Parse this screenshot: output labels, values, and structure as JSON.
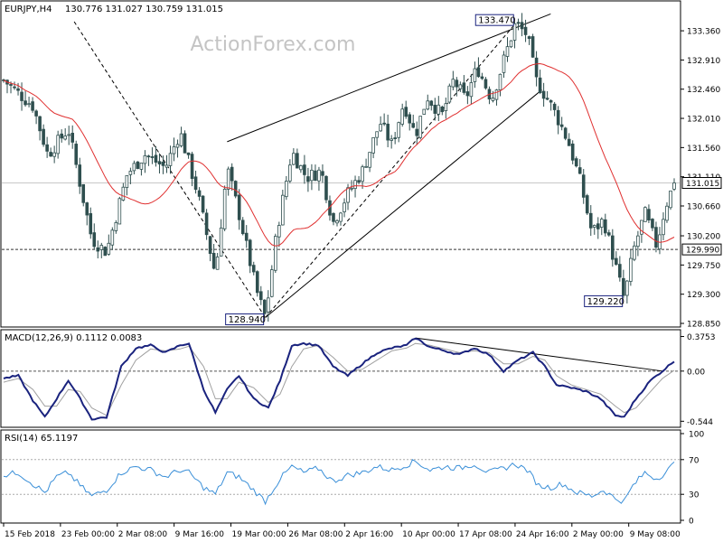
{
  "header": {
    "symbol": "EURJPY,H4",
    "ohlc": "130.776 131.027 130.759 131.015"
  },
  "watermark": "ActionForex.com",
  "colors": {
    "candle": "#2f4f4f",
    "ma": "#e03030",
    "macd_main": "#1a237e",
    "macd_signal": "#a0a0a0",
    "rsi": "#3a8fd8",
    "trendline": "#000000",
    "price_tag_bg": "#ffffff",
    "text": "#000000",
    "grid": "#c8c8c8"
  },
  "chart_data": [
    {
      "type": "candlestick",
      "panel": "main",
      "ylim": [
        128.85,
        133.57
      ],
      "y_ticks": [
        "133.360",
        "132.910",
        "132.460",
        "132.010",
        "131.560",
        "131.110",
        "130.660",
        "130.200",
        "129.750",
        "129.300",
        "128.850"
      ],
      "y_tick_values": [
        133.36,
        132.91,
        132.46,
        132.01,
        131.56,
        131.11,
        130.66,
        130.2,
        129.75,
        129.3,
        128.85
      ],
      "x_labels": [
        "15 Feb 2018",
        "23 Feb 00:00",
        "2 Mar 08:00",
        "9 Mar 16:00",
        "19 Mar 00:00",
        "26 Mar 08:00",
        "2 Apr 16:00",
        "10 Apr 00:00",
        "17 Apr 08:00",
        "24 Apr 16:00",
        "2 May 00:00",
        "9 May 08:00"
      ],
      "bars": 186,
      "anchors": [
        [
          0,
          132.6
        ],
        [
          10,
          132.2
        ],
        [
          15,
          131.45
        ],
        [
          22,
          131.85
        ],
        [
          30,
          130.15
        ],
        [
          35,
          129.95
        ],
        [
          42,
          131.15
        ],
        [
          48,
          131.45
        ],
        [
          55,
          131.25
        ],
        [
          60,
          131.8
        ],
        [
          66,
          130.85
        ],
        [
          72,
          129.6
        ],
        [
          76,
          131.25
        ],
        [
          80,
          130.55
        ],
        [
          86,
          129.35
        ],
        [
          89,
          128.94
        ],
        [
          93,
          130.3
        ],
        [
          98,
          131.5
        ],
        [
          103,
          131.1
        ],
        [
          108,
          131.2
        ],
        [
          112,
          130.4
        ],
        [
          117,
          130.85
        ],
        [
          122,
          131.2
        ],
        [
          128,
          131.95
        ],
        [
          132,
          131.6
        ],
        [
          136,
          132.25
        ],
        [
          140,
          131.75
        ],
        [
          144,
          132.35
        ],
        [
          149,
          132.05
        ],
        [
          153,
          132.6
        ],
        [
          157,
          132.3
        ],
        [
          161,
          132.8
        ],
        [
          166,
          132.3
        ],
        [
          170,
          132.9
        ],
        [
          174,
          133.47
        ],
        [
          178,
          133.3
        ],
        [
          181,
          132.6
        ],
        [
          185,
          132.3
        ],
        [
          188,
          132.05
        ],
        [
          192,
          131.65
        ],
        [
          196,
          131.05
        ],
        [
          200,
          130.25
        ],
        [
          204,
          130.45
        ],
        [
          208,
          129.75
        ],
        [
          211,
          129.22
        ],
        [
          214,
          129.95
        ],
        [
          218,
          130.55
        ],
        [
          222,
          130.05
        ],
        [
          225,
          130.65
        ],
        [
          228,
          131.015
        ]
      ],
      "ma_period": 20,
      "horizontal_lines": [
        {
          "value": 131.015,
          "label": "131.015",
          "style": "solid"
        },
        {
          "value": 129.99,
          "label": "129.990",
          "style": "dashed"
        }
      ],
      "annotations": [
        {
          "label": "133.470",
          "value": 133.47
        },
        {
          "label": "128.940",
          "value": 128.94
        },
        {
          "label": "129.220",
          "value": 129.22
        }
      ],
      "trendlines": [
        {
          "x1": 76,
          "y1": 131.65,
          "x2": 186,
          "y2": 133.62,
          "style": "solid"
        },
        {
          "x1": 89,
          "y1": 128.94,
          "x2": 183,
          "y2": 132.45,
          "style": "solid"
        },
        {
          "x1": 24,
          "y1": 133.5,
          "x2": 89,
          "y2": 128.94,
          "style": "dashed"
        },
        {
          "x1": 89,
          "y1": 128.94,
          "x2": 174,
          "y2": 133.47,
          "style": "dashed"
        }
      ]
    },
    {
      "type": "line",
      "panel": "macd",
      "title": "MACD(12,26,9) 0.1112 0.0083",
      "ylim": [
        -0.58,
        0.4
      ],
      "y_ticks": [
        "0.3753",
        "0.00",
        "-0.544"
      ],
      "y_tick_values": [
        0.3753,
        0.0,
        -0.544
      ],
      "series": [
        {
          "name": "MACD",
          "points": [
            [
              0,
              -0.08
            ],
            [
              5,
              -0.05
            ],
            [
              10,
              -0.32
            ],
            [
              14,
              -0.5
            ],
            [
              18,
              -0.3
            ],
            [
              22,
              -0.1
            ],
            [
              26,
              -0.3
            ],
            [
              30,
              -0.52
            ],
            [
              35,
              -0.5
            ],
            [
              40,
              0.05
            ],
            [
              45,
              0.25
            ],
            [
              50,
              0.28
            ],
            [
              55,
              0.2
            ],
            [
              60,
              0.28
            ],
            [
              63,
              0.3
            ],
            [
              68,
              -0.2
            ],
            [
              72,
              -0.45
            ],
            [
              76,
              -0.2
            ],
            [
              80,
              -0.05
            ],
            [
              85,
              -0.3
            ],
            [
              90,
              -0.4
            ],
            [
              94,
              -0.1
            ],
            [
              98,
              0.28
            ],
            [
              102,
              0.3
            ],
            [
              107,
              0.28
            ],
            [
              112,
              0.05
            ],
            [
              117,
              -0.05
            ],
            [
              122,
              0.08
            ],
            [
              127,
              0.2
            ],
            [
              132,
              0.25
            ],
            [
              137,
              0.28
            ],
            [
              140,
              0.36
            ],
            [
              145,
              0.26
            ],
            [
              150,
              0.22
            ],
            [
              155,
              0.18
            ],
            [
              160,
              0.25
            ],
            [
              165,
              0.18
            ],
            [
              170,
              0.0
            ],
            [
              175,
              0.12
            ],
            [
              180,
              0.2
            ],
            [
              184,
              0.05
            ],
            [
              188,
              -0.15
            ],
            [
              193,
              -0.18
            ],
            [
              198,
              -0.22
            ],
            [
              203,
              -0.3
            ],
            [
              208,
              -0.48
            ],
            [
              211,
              -0.5
            ],
            [
              215,
              -0.3
            ],
            [
              220,
              -0.1
            ],
            [
              224,
              0.0
            ],
            [
              228,
              0.1112
            ]
          ]
        },
        {
          "name": "Signal",
          "points": [
            [
              0,
              -0.12
            ],
            [
              5,
              -0.08
            ],
            [
              10,
              -0.2
            ],
            [
              14,
              -0.38
            ],
            [
              18,
              -0.38
            ],
            [
              22,
              -0.2
            ],
            [
              26,
              -0.22
            ],
            [
              30,
              -0.4
            ],
            [
              35,
              -0.48
            ],
            [
              40,
              -0.15
            ],
            [
              45,
              0.12
            ],
            [
              50,
              0.24
            ],
            [
              55,
              0.22
            ],
            [
              60,
              0.24
            ],
            [
              63,
              0.27
            ],
            [
              68,
              0.05
            ],
            [
              72,
              -0.3
            ],
            [
              76,
              -0.3
            ],
            [
              80,
              -0.12
            ],
            [
              85,
              -0.18
            ],
            [
              90,
              -0.34
            ],
            [
              94,
              -0.25
            ],
            [
              98,
              0.05
            ],
            [
              102,
              0.24
            ],
            [
              107,
              0.28
            ],
            [
              112,
              0.15
            ],
            [
              117,
              0.0
            ],
            [
              122,
              0.02
            ],
            [
              127,
              0.12
            ],
            [
              132,
              0.22
            ],
            [
              137,
              0.25
            ],
            [
              140,
              0.3
            ],
            [
              145,
              0.28
            ],
            [
              150,
              0.24
            ],
            [
              155,
              0.2
            ],
            [
              160,
              0.22
            ],
            [
              165,
              0.2
            ],
            [
              170,
              0.08
            ],
            [
              175,
              0.08
            ],
            [
              180,
              0.16
            ],
            [
              184,
              0.12
            ],
            [
              188,
              -0.05
            ],
            [
              193,
              -0.15
            ],
            [
              198,
              -0.2
            ],
            [
              203,
              -0.25
            ],
            [
              208,
              -0.38
            ],
            [
              211,
              -0.45
            ],
            [
              215,
              -0.4
            ],
            [
              220,
              -0.22
            ],
            [
              224,
              -0.08
            ],
            [
              228,
              0.0083
            ]
          ]
        }
      ],
      "trendlines": [
        {
          "x1": 140,
          "y1": 0.36,
          "x2": 224,
          "y2": 0.0,
          "style": "solid"
        }
      ]
    },
    {
      "type": "line",
      "panel": "rsi",
      "title": "RSI(14) 65.1197",
      "ylim": [
        0,
        100
      ],
      "y_ticks": [
        "100",
        "70",
        "30",
        "0"
      ],
      "y_tick_values": [
        100,
        70,
        30,
        0
      ],
      "levels": [
        70,
        30
      ],
      "series": [
        {
          "name": "RSI(14)",
          "points": [
            [
              0,
              52
            ],
            [
              5,
              55
            ],
            [
              10,
              42
            ],
            [
              14,
              32
            ],
            [
              18,
              50
            ],
            [
              22,
              55
            ],
            [
              26,
              40
            ],
            [
              30,
              28
            ],
            [
              35,
              35
            ],
            [
              40,
              55
            ],
            [
              45,
              62
            ],
            [
              50,
              58
            ],
            [
              55,
              50
            ],
            [
              60,
              58
            ],
            [
              63,
              55
            ],
            [
              68,
              38
            ],
            [
              72,
              30
            ],
            [
              76,
              55
            ],
            [
              80,
              50
            ],
            [
              85,
              35
            ],
            [
              89,
              22
            ],
            [
              94,
              48
            ],
            [
              98,
              62
            ],
            [
              102,
              55
            ],
            [
              107,
              60
            ],
            [
              112,
              45
            ],
            [
              117,
              52
            ],
            [
              122,
              55
            ],
            [
              127,
              62
            ],
            [
              132,
              58
            ],
            [
              137,
              64
            ],
            [
              140,
              68
            ],
            [
              145,
              58
            ],
            [
              150,
              62
            ],
            [
              155,
              60
            ],
            [
              160,
              65
            ],
            [
              165,
              55
            ],
            [
              170,
              60
            ],
            [
              174,
              65
            ],
            [
              178,
              58
            ],
            [
              182,
              40
            ],
            [
              186,
              38
            ],
            [
              190,
              42
            ],
            [
              195,
              32
            ],
            [
              200,
              28
            ],
            [
              204,
              35
            ],
            [
              208,
              25
            ],
            [
              211,
              22
            ],
            [
              214,
              40
            ],
            [
              218,
              55
            ],
            [
              222,
              48
            ],
            [
              225,
              55
            ],
            [
              228,
              65.1197
            ]
          ]
        }
      ]
    }
  ]
}
